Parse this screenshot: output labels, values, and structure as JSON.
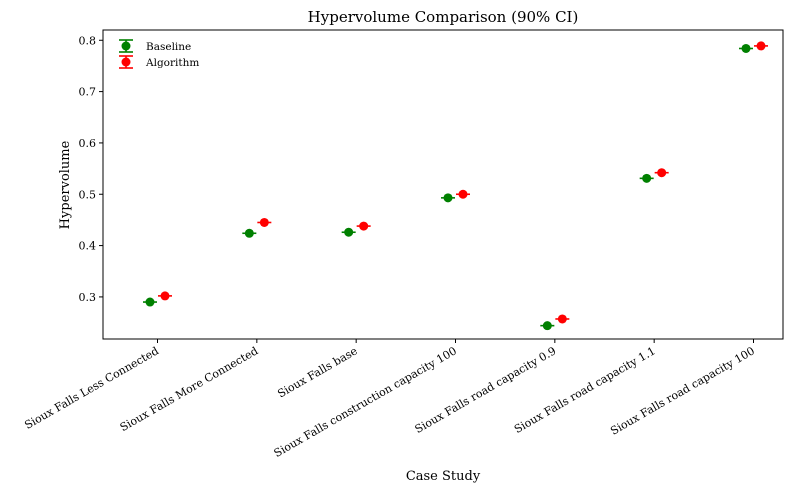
{
  "chart_data": {
    "type": "scatter",
    "title": "Hypervolume Comparison (90% CI)",
    "xlabel": "Case Study",
    "ylabel": "Hypervolume",
    "ylim": [
      0.218,
      0.82
    ],
    "yticks": [
      0.3,
      0.4,
      0.5,
      0.6,
      0.7,
      0.8
    ],
    "ytick_labels": [
      "0.3",
      "0.4",
      "0.5",
      "0.6",
      "0.7",
      "0.8"
    ],
    "categories": [
      "Sioux Falls Less Connected",
      "Sioux Falls More Connected",
      "Sioux Falls base",
      "Sioux Falls construction capacity 100",
      "Sioux Falls road capacity 0.9",
      "Sioux Falls road capacity 1.1",
      "Sioux Falls road capacity 100"
    ],
    "legend_position": "top-left",
    "series": [
      {
        "name": "Baseline",
        "color": "#008000",
        "values": [
          0.29,
          0.424,
          0.426,
          0.493,
          0.244,
          0.531,
          0.784
        ],
        "ci_half_width": [
          0.003,
          0.003,
          0.003,
          0.003,
          0.003,
          0.003,
          0.003
        ]
      },
      {
        "name": "Algorithm",
        "color": "#ff0000",
        "values": [
          0.302,
          0.445,
          0.438,
          0.5,
          0.257,
          0.542,
          0.789
        ],
        "ci_half_width": [
          0.003,
          0.003,
          0.003,
          0.003,
          0.003,
          0.003,
          0.003
        ]
      }
    ]
  }
}
